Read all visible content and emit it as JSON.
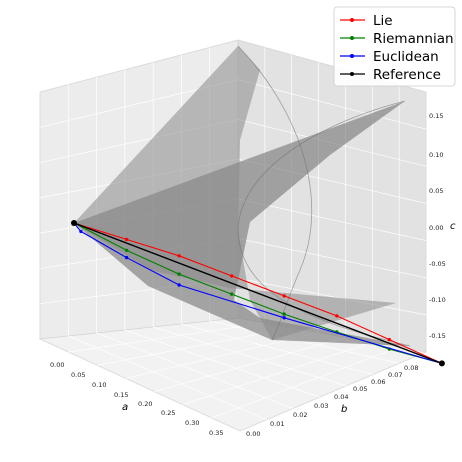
{
  "chart_data": {
    "type": "line3d",
    "axes": {
      "x": {
        "label": "a",
        "range": [
          0.0,
          0.35
        ],
        "ticks": [
          "0.00",
          "0.05",
          "0.10",
          "0.15",
          "0.20",
          "0.25",
          "0.30",
          "0.35"
        ]
      },
      "y": {
        "label": "b",
        "range": [
          0.0,
          0.08
        ],
        "ticks": [
          "0.00",
          "0.01",
          "0.02",
          "0.03",
          "0.04",
          "0.05",
          "0.06",
          "0.07",
          "0.08"
        ]
      },
      "z": {
        "label": "c",
        "range": [
          -0.15,
          0.15
        ],
        "ticks": [
          "-0.15",
          "-0.10",
          "-0.05",
          "0.00",
          "0.05",
          "0.10",
          "0.15"
        ]
      }
    },
    "surface": {
      "color": "#7a7a7a",
      "opacity": 0.65
    },
    "legend": {
      "position": "top-right"
    },
    "series": [
      {
        "name": "Lie",
        "color": "#ff0000",
        "points": [
          [
            0.0,
            0.0,
            0.0
          ],
          [
            0.05,
            0.01,
            -0.005
          ],
          [
            0.1,
            0.02,
            -0.01
          ],
          [
            0.15,
            0.03,
            -0.02
          ],
          [
            0.2,
            0.04,
            -0.03
          ],
          [
            0.25,
            0.05,
            -0.04
          ],
          [
            0.3,
            0.06,
            -0.055
          ],
          [
            0.35,
            0.07,
            -0.07
          ]
        ]
      },
      {
        "name": "Riemannian",
        "color": "#008000",
        "points": [
          [
            0.0,
            0.0,
            0.0
          ],
          [
            0.05,
            0.01,
            -0.02
          ],
          [
            0.1,
            0.02,
            -0.035
          ],
          [
            0.15,
            0.03,
            -0.045
          ],
          [
            0.2,
            0.04,
            -0.055
          ],
          [
            0.25,
            0.05,
            -0.062
          ],
          [
            0.3,
            0.06,
            -0.068
          ],
          [
            0.35,
            0.07,
            -0.07
          ]
        ]
      },
      {
        "name": "Euclidean",
        "color": "#0000ff",
        "points": [
          [
            0.0,
            0.0,
            0.0
          ],
          [
            0.0,
            0.003,
            -0.01
          ],
          [
            0.05,
            0.01,
            -0.03
          ],
          [
            0.1,
            0.02,
            -0.05
          ],
          [
            0.2,
            0.04,
            -0.06
          ],
          [
            0.35,
            0.07,
            -0.07
          ]
        ]
      },
      {
        "name": "Reference",
        "color": "#000000",
        "points": [
          [
            0.0,
            0.0,
            0.0
          ],
          [
            0.35,
            0.07,
            -0.07
          ]
        ]
      }
    ]
  }
}
